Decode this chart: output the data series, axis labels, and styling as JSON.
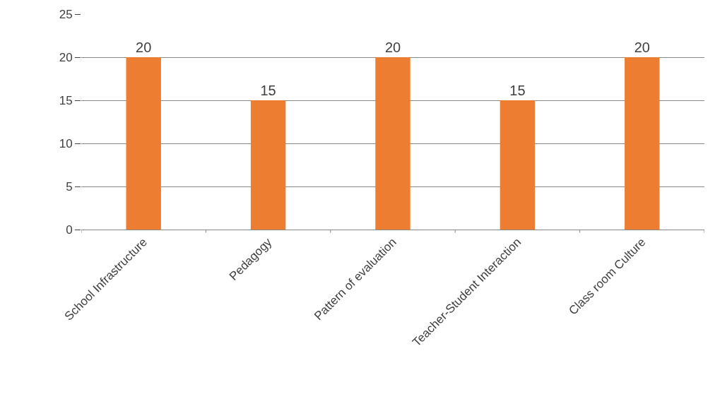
{
  "chart_data": {
    "type": "bar",
    "categories": [
      "School Infrastructure",
      "Pedagogy",
      "Pattern of evaluation",
      "Teacher-Student Interaction",
      "Class room Culture"
    ],
    "values": [
      20,
      15,
      20,
      15,
      20
    ],
    "color": "#ed7d31",
    "ylim": [
      0,
      25
    ],
    "yticks": [
      0,
      5,
      10,
      15,
      20,
      25
    ],
    "grid": "y",
    "data_labels": true,
    "legend": false
  }
}
